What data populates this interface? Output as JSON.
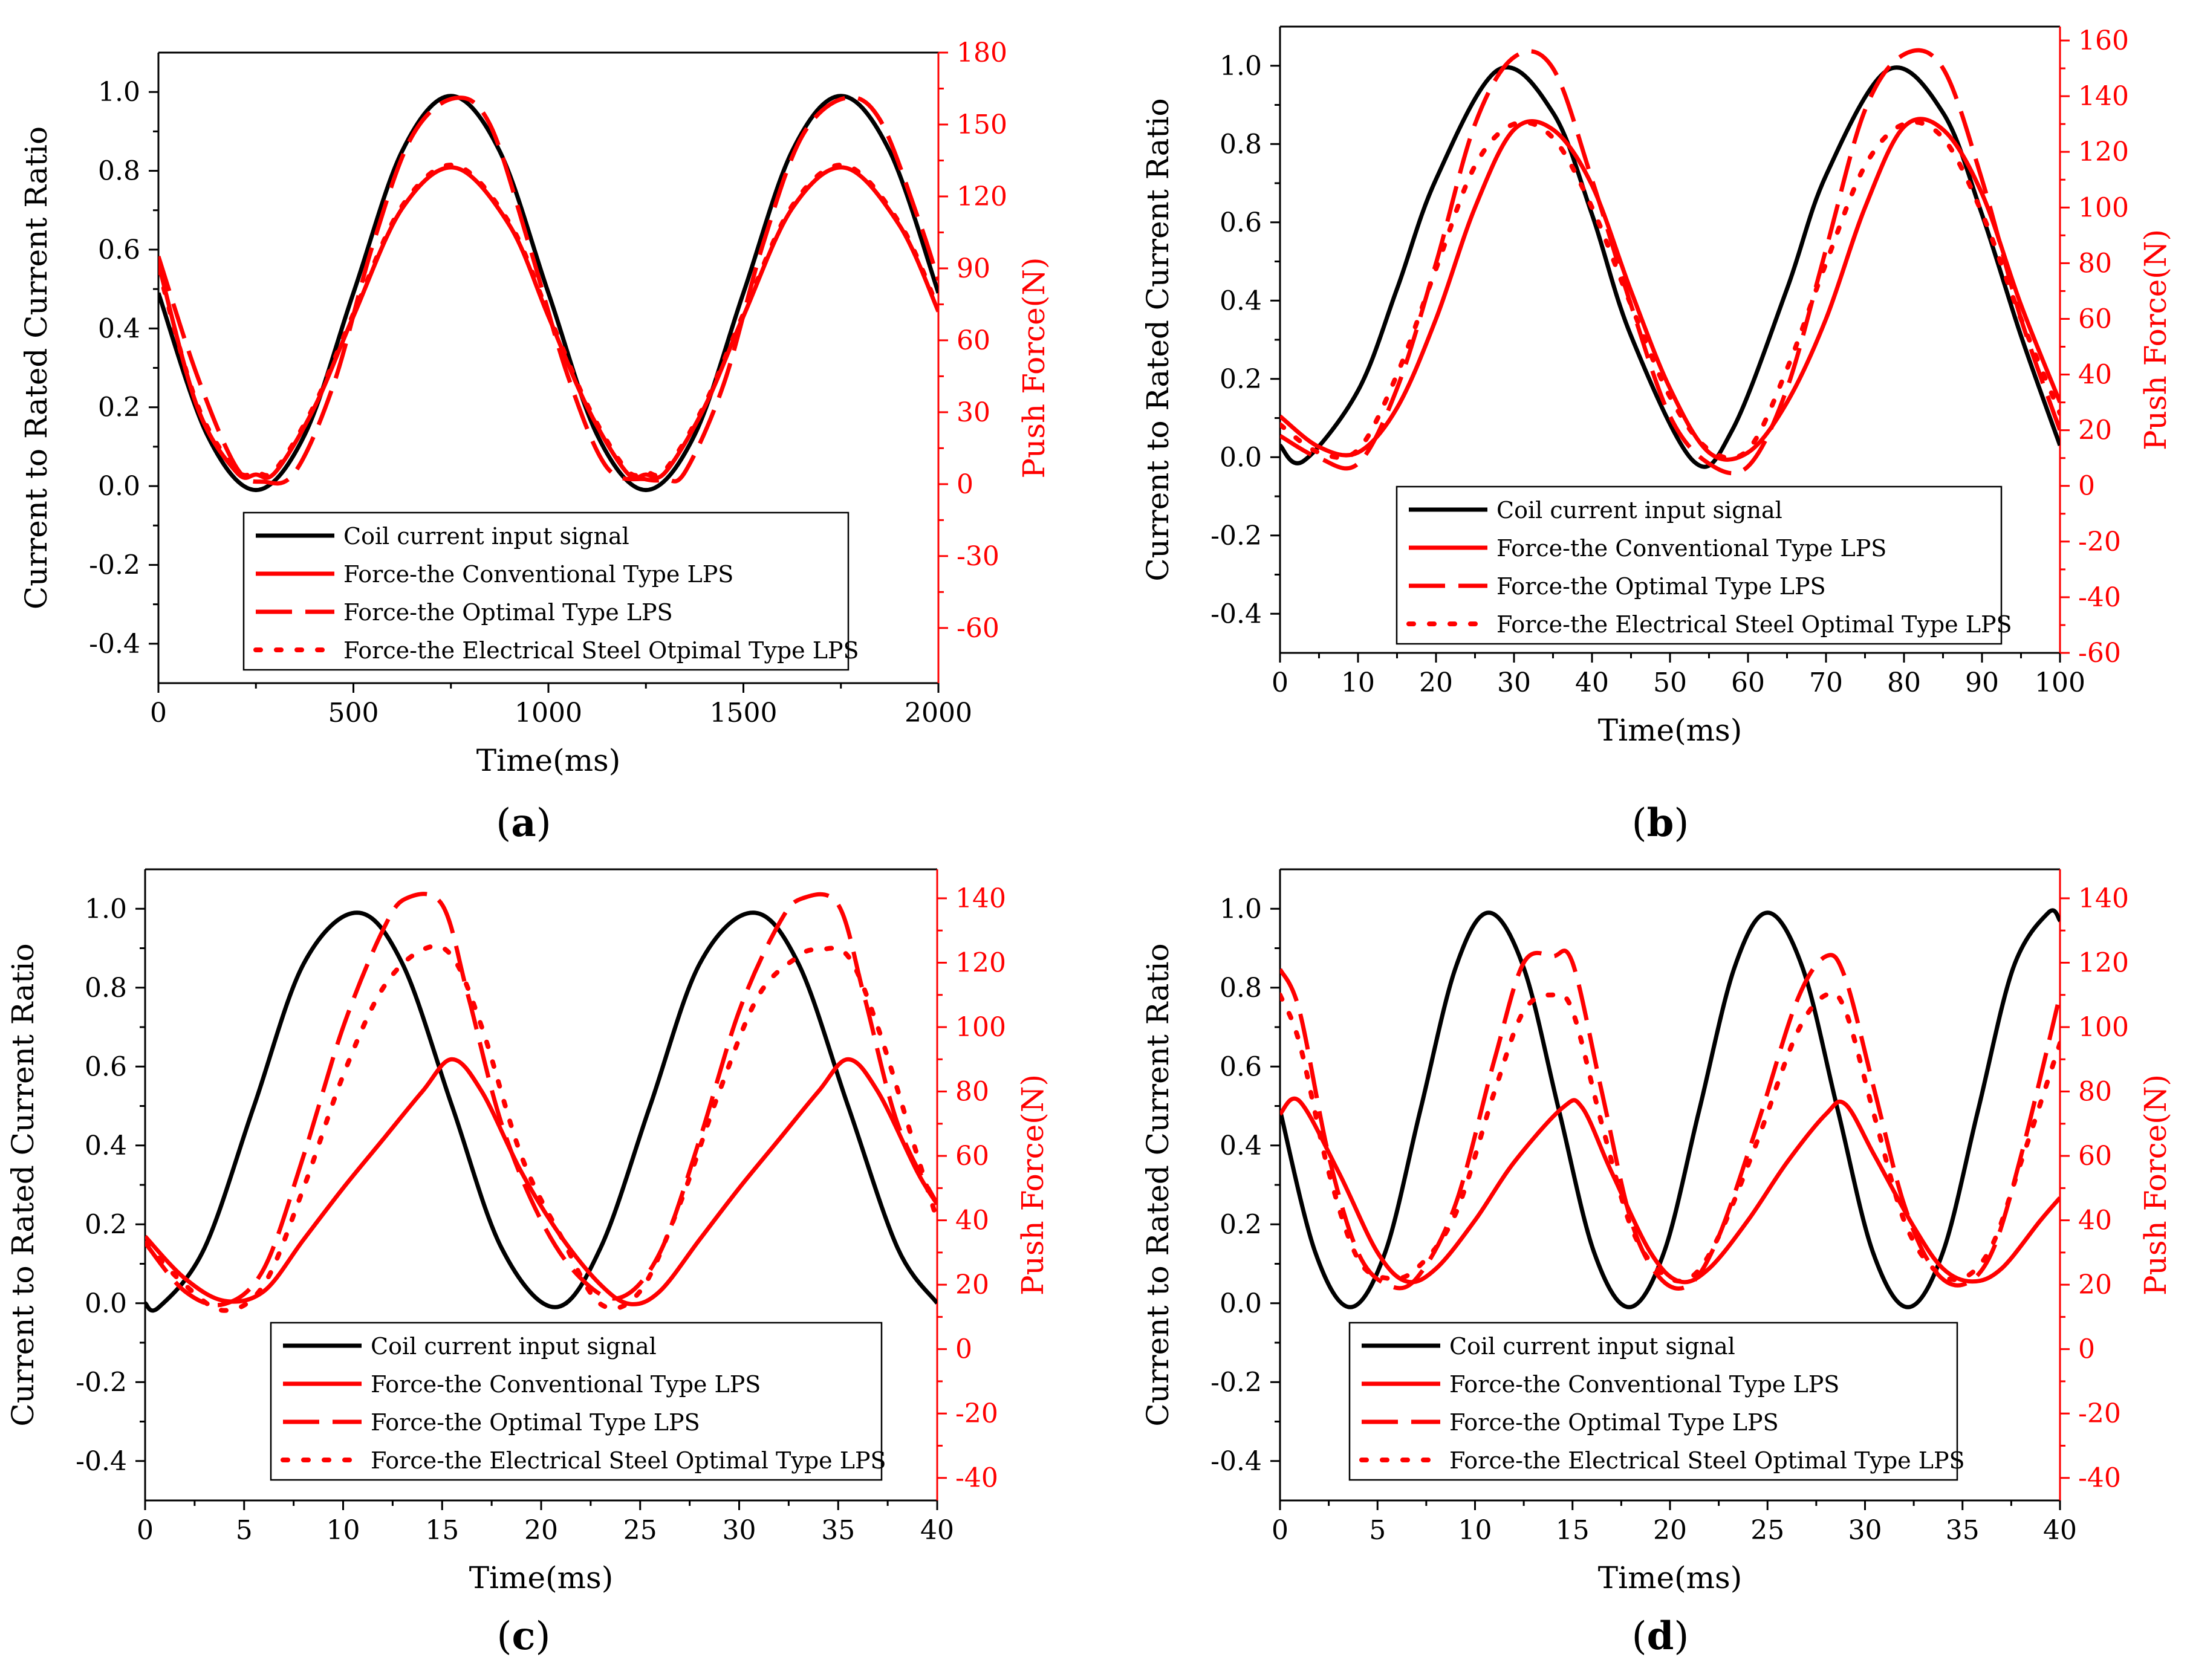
{
  "figure": {
    "type": "multi-panel line chart with dual y-axes"
  },
  "chart_data": [
    {
      "panel_label": "a",
      "type": "line",
      "xlabel": "Time(ms)",
      "ylabel_left": "Current to Rated Current Ratio",
      "ylabel_right": "Push Force(N)",
      "xlim": [
        0,
        2000
      ],
      "xticks": [
        0,
        500,
        1000,
        1500,
        2000
      ],
      "ylim_left": [
        -0.5,
        1.1
      ],
      "yticks_left": [
        -0.4,
        -0.2,
        0.0,
        0.2,
        0.4,
        0.6,
        0.8,
        1.0
      ],
      "ylim_right": [
        -83,
        180
      ],
      "yticks_right": [
        -60,
        -30,
        0,
        30,
        60,
        90,
        120,
        150,
        180
      ],
      "legend_position": "bottom-center",
      "series": [
        {
          "name": "Coil current input signal",
          "axis": "left",
          "style": "solid",
          "color": "#000000",
          "x": [
            0,
            125,
            250,
            375,
            500,
            625,
            750,
            875,
            1000,
            1125,
            1250,
            1375,
            1500,
            1625,
            1750,
            1875,
            2000
          ],
          "y": [
            0.49,
            0.13,
            -0.01,
            0.13,
            0.49,
            0.85,
            0.99,
            0.85,
            0.49,
            0.13,
            -0.01,
            0.13,
            0.49,
            0.85,
            0.99,
            0.85,
            0.49
          ]
        },
        {
          "name": "Force-the Conventional Type LPS",
          "axis": "right",
          "style": "solid",
          "color": "#ff0000",
          "x": [
            0,
            100,
            200,
            250,
            300,
            400,
            500,
            625,
            760,
            900,
            1000,
            1100,
            1200,
            1250,
            1300,
            1400,
            1500,
            1625,
            1760,
            1900,
            2000
          ],
          "y": [
            92,
            32,
            5,
            4,
            5,
            32,
            70,
            115,
            132,
            108,
            70,
            32,
            5,
            4,
            5,
            32,
            70,
            115,
            132,
            108,
            72
          ]
        },
        {
          "name": "Force-the Optimal Type LPS",
          "axis": "right",
          "style": "dashed",
          "color": "#ff0000",
          "x": [
            0,
            100,
            200,
            270,
            350,
            450,
            550,
            650,
            760,
            850,
            950,
            1050,
            1150,
            1250,
            1300,
            1350,
            1450,
            1550,
            1650,
            1760,
            1850,
            1950,
            2000
          ],
          "y": [
            95,
            45,
            7,
            1,
            5,
            42,
            100,
            145,
            161,
            150,
            100,
            45,
            7,
            2,
            2,
            5,
            42,
            100,
            145,
            161,
            152,
            110,
            85
          ]
        },
        {
          "name": "Force-the Electrical Steel Otpimal Type LPS",
          "axis": "right",
          "style": "dotted",
          "color": "#ff0000",
          "x": [
            0,
            100,
            200,
            250,
            300,
            400,
            500,
            625,
            760,
            900,
            1000,
            1100,
            1200,
            1250,
            1300,
            1400,
            1500,
            1625,
            1760,
            1900,
            2000
          ],
          "y": [
            90,
            33,
            6,
            5,
            6,
            33,
            71,
            116,
            133,
            109,
            71,
            33,
            6,
            5,
            6,
            33,
            71,
            116,
            133,
            109,
            73
          ]
        }
      ]
    },
    {
      "panel_label": "b",
      "type": "line",
      "xlabel": "Time(ms)",
      "ylabel_left": "Current to Rated Current Ratio",
      "ylabel_right": "Push Force(N)",
      "xlim": [
        0,
        100
      ],
      "xticks": [
        0,
        10,
        20,
        30,
        40,
        50,
        60,
        70,
        80,
        90,
        100
      ],
      "ylim_left": [
        -0.5,
        1.1
      ],
      "yticks_left": [
        -0.4,
        -0.2,
        0.0,
        0.2,
        0.4,
        0.6,
        0.8,
        1.0
      ],
      "ylim_right": [
        -60,
        165
      ],
      "yticks_right": [
        -60,
        -40,
        -20,
        0,
        20,
        40,
        60,
        80,
        100,
        120,
        140,
        160
      ],
      "legend_position": "bottom-center",
      "series": [
        {
          "name": "Coil current input signal",
          "axis": "left",
          "style": "solid",
          "color": "#000000",
          "x": [
            0,
            3,
            10,
            15,
            20,
            28,
            35,
            40,
            45,
            53,
            58,
            65,
            70,
            78,
            85,
            90,
            95,
            100
          ],
          "y": [
            0.03,
            -0.01,
            0.17,
            0.43,
            0.71,
            0.99,
            0.88,
            0.62,
            0.31,
            -0.01,
            0.07,
            0.43,
            0.72,
            0.99,
            0.88,
            0.62,
            0.31,
            0.03
          ]
        },
        {
          "name": "Force-the Conventional Type LPS",
          "axis": "right",
          "style": "solid",
          "color": "#ff0000",
          "x": [
            0,
            5,
            10,
            15,
            20,
            25,
            30,
            35,
            40,
            45,
            50,
            55,
            60,
            65,
            70,
            75,
            80,
            85,
            90,
            95,
            100
          ],
          "y": [
            25,
            14,
            12,
            28,
            60,
            100,
            128,
            128,
            108,
            70,
            35,
            12,
            12,
            30,
            60,
            100,
            129,
            128,
            105,
            65,
            30
          ]
        },
        {
          "name": "Force-the Optimal Type LPS",
          "axis": "right",
          "style": "dashed",
          "color": "#ff0000",
          "x": [
            0,
            5,
            10,
            15,
            20,
            25,
            30,
            35,
            40,
            45,
            50,
            55,
            60,
            65,
            70,
            75,
            80,
            85,
            90,
            95,
            100
          ],
          "y": [
            18,
            10,
            8,
            35,
            80,
            130,
            154,
            150,
            110,
            65,
            25,
            8,
            7,
            35,
            85,
            135,
            155,
            150,
            110,
            60,
            20
          ]
        },
        {
          "name": "Force-the Electrical Steel Optimal Type LPS",
          "axis": "right",
          "style": "dotted",
          "color": "#ff0000",
          "x": [
            0,
            5,
            10,
            15,
            20,
            25,
            30,
            35,
            40,
            45,
            50,
            55,
            60,
            65,
            70,
            75,
            80,
            85,
            90,
            95,
            100
          ],
          "y": [
            22,
            12,
            13,
            40,
            78,
            115,
            130,
            125,
            100,
            65,
            32,
            13,
            13,
            42,
            80,
            115,
            130,
            125,
            98,
            60,
            26
          ]
        }
      ]
    },
    {
      "panel_label": "c",
      "type": "line",
      "xlabel": "Time(ms)",
      "ylabel_left": "Current to Rated Current Ratio",
      "ylabel_right": "Push Force(N)",
      "xlim": [
        0,
        40
      ],
      "xticks": [
        0,
        5,
        10,
        15,
        20,
        25,
        30,
        35,
        40
      ],
      "ylim_left": [
        -0.5,
        1.1
      ],
      "yticks_left": [
        -0.4,
        -0.2,
        0.0,
        0.2,
        0.4,
        0.6,
        0.8,
        1.0
      ],
      "ylim_right": [
        -47,
        149
      ],
      "yticks_right": [
        -40,
        -20,
        0,
        20,
        40,
        60,
        80,
        100,
        120,
        140
      ],
      "legend_position": "bottom-center",
      "series": [
        {
          "name": "Coil current input signal",
          "axis": "left",
          "style": "solid",
          "color": "#000000",
          "x": [
            0,
            0.7,
            3,
            5.5,
            8,
            10.7,
            13,
            15.5,
            18,
            20.7,
            23,
            25.5,
            28,
            30.7,
            33,
            35.5,
            38,
            40
          ],
          "y": [
            0.0,
            -0.01,
            0.14,
            0.5,
            0.86,
            0.99,
            0.86,
            0.5,
            0.14,
            -0.01,
            0.14,
            0.5,
            0.86,
            0.99,
            0.86,
            0.5,
            0.14,
            0.0
          ]
        },
        {
          "name": "Force-the Conventional Type LPS",
          "axis": "right",
          "style": "solid",
          "color": "#ff0000",
          "x": [
            0,
            2,
            4,
            6,
            8,
            10,
            12,
            14,
            15.5,
            17,
            19,
            21,
            23,
            24.5,
            26,
            28,
            30,
            32,
            34,
            35.5,
            37,
            39,
            40
          ],
          "y": [
            35,
            22,
            15,
            18,
            34,
            50,
            65,
            80,
            90,
            80,
            55,
            35,
            20,
            14,
            18,
            34,
            50,
            65,
            80,
            90,
            80,
            55,
            45
          ]
        },
        {
          "name": "Force-the Optimal Type LPS",
          "axis": "right",
          "style": "dashed",
          "color": "#ff0000",
          "x": [
            0,
            2,
            4,
            6,
            8,
            10,
            12,
            13.2,
            15,
            16.3,
            18,
            20,
            22,
            24,
            26,
            28,
            30,
            32,
            33.2,
            35,
            36.3,
            38,
            40
          ],
          "y": [
            33,
            18,
            14,
            25,
            60,
            100,
            130,
            140,
            138,
            110,
            70,
            40,
            22,
            16,
            30,
            65,
            105,
            132,
            140,
            138,
            110,
            70,
            45
          ]
        },
        {
          "name": "Force-the Electrical Steel Optimal Type LPS",
          "axis": "right",
          "style": "dotted",
          "color": "#ff0000",
          "x": [
            0,
            2,
            4,
            6,
            8,
            10,
            12,
            14,
            15.5,
            17,
            19,
            21,
            23,
            25,
            27,
            29,
            31,
            33,
            34,
            35.5,
            37,
            39,
            40
          ],
          "y": [
            33,
            20,
            12,
            20,
            50,
            85,
            112,
            124,
            122,
            100,
            60,
            35,
            14,
            18,
            45,
            80,
            110,
            122,
            124,
            122,
            100,
            60,
            40
          ]
        }
      ]
    },
    {
      "panel_label": "d",
      "type": "line",
      "xlabel": "Time(ms)",
      "ylabel_left": "Current to Rated Current Ratio",
      "ylabel_right": "Push Force(N)",
      "xlim": [
        0,
        40
      ],
      "xticks": [
        0,
        5,
        10,
        15,
        20,
        25,
        30,
        35,
        40
      ],
      "ylim_left": [
        -0.5,
        1.1
      ],
      "yticks_left": [
        -0.4,
        -0.2,
        0.0,
        0.2,
        0.4,
        0.6,
        0.8,
        1.0
      ],
      "ylim_right": [
        -47,
        149
      ],
      "yticks_right": [
        -40,
        -20,
        0,
        20,
        40,
        60,
        80,
        100,
        120,
        140
      ],
      "legend_position": "bottom-center",
      "series": [
        {
          "name": "Coil current input signal",
          "axis": "left",
          "style": "solid",
          "color": "#000000",
          "x": [
            0,
            1.8,
            3.6,
            5.4,
            7.2,
            9,
            10.7,
            12.5,
            14.3,
            16.1,
            17.9,
            19.7,
            21.5,
            23.3,
            25,
            26.8,
            28.6,
            30.4,
            32.2,
            34,
            35.8,
            37.6,
            39.4,
            40
          ],
          "y": [
            0.49,
            0.13,
            -0.01,
            0.13,
            0.49,
            0.85,
            0.99,
            0.85,
            0.49,
            0.13,
            -0.01,
            0.13,
            0.49,
            0.85,
            0.99,
            0.85,
            0.49,
            0.13,
            -0.01,
            0.13,
            0.49,
            0.85,
            0.99,
            0.97
          ]
        },
        {
          "name": "Force-the Conventional Type LPS",
          "axis": "right",
          "style": "solid",
          "color": "#ff0000",
          "x": [
            0,
            1,
            3,
            5,
            6.5,
            8,
            10,
            12,
            14.5,
            15.5,
            17,
            19,
            20.5,
            22,
            24,
            26,
            28,
            29,
            30.5,
            32.5,
            34,
            35.5,
            37,
            39,
            40
          ],
          "y": [
            73,
            77,
            55,
            30,
            21,
            25,
            40,
            58,
            75,
            75,
            55,
            30,
            21,
            25,
            40,
            58,
            73,
            76,
            60,
            38,
            25,
            21,
            25,
            40,
            47
          ]
        },
        {
          "name": "Force-the Optimal Type LPS",
          "axis": "right",
          "style": "dashed",
          "color": "#ff0000",
          "x": [
            0,
            1,
            2.5,
            4,
            5.5,
            7,
            9,
            11,
            12.5,
            14,
            15,
            16.5,
            18,
            19.5,
            21,
            22.5,
            24.5,
            26.5,
            28,
            29,
            30.5,
            32,
            33.5,
            35,
            36.5,
            38,
            40
          ],
          "y": [
            118,
            105,
            60,
            30,
            20,
            22,
            45,
            90,
            120,
            122,
            120,
            80,
            40,
            22,
            20,
            35,
            70,
            108,
            122,
            115,
            80,
            45,
            25,
            20,
            30,
            60,
            110
          ]
        },
        {
          "name": "Force-the Electrical Steel Optimal Type LPS",
          "axis": "right",
          "style": "dotted",
          "color": "#ff0000",
          "x": [
            0,
            1,
            2.5,
            4,
            5.5,
            7,
            9,
            11,
            12.5,
            14,
            15,
            16.5,
            18,
            19.5,
            21,
            22.5,
            24.5,
            26.5,
            28,
            29,
            30.5,
            32,
            33.5,
            35,
            36.5,
            38,
            40
          ],
          "y": [
            110,
            95,
            55,
            28,
            22,
            25,
            42,
            80,
            105,
            110,
            105,
            70,
            38,
            24,
            22,
            35,
            65,
            98,
            110,
            105,
            72,
            40,
            25,
            22,
            32,
            58,
            95
          ]
        }
      ]
    }
  ]
}
